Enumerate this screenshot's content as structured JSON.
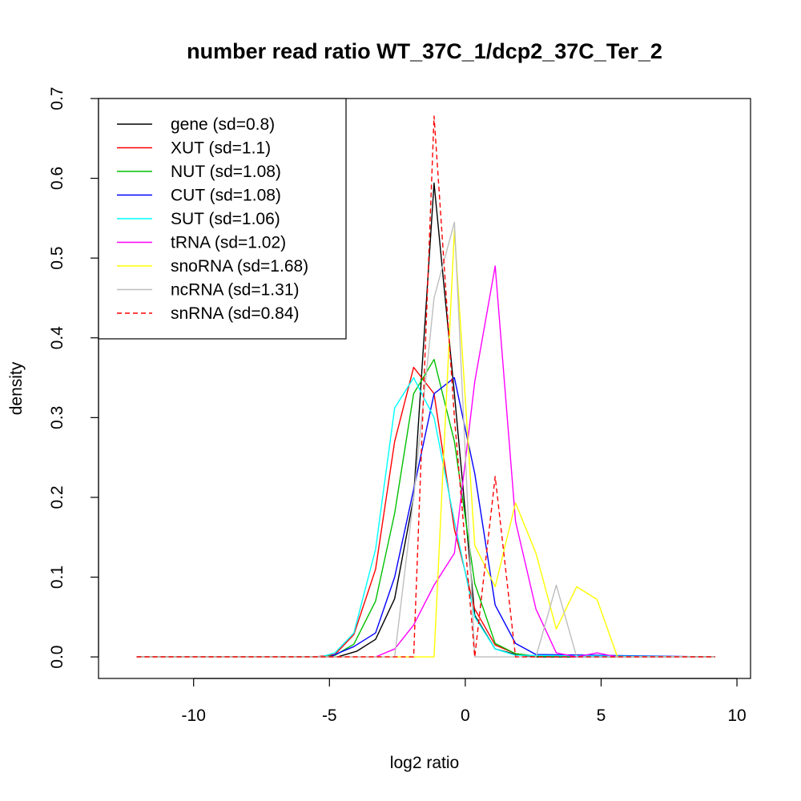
{
  "chart_data": {
    "type": "line",
    "title": "number read ratio WT_37C_1/dcp2_37C_Ter_2",
    "xlabel": "log2 ratio",
    "ylabel": "density",
    "xlim": [
      -13.5,
      10.5
    ],
    "ylim": [
      -0.027,
      0.7
    ],
    "x_ticks": [
      -10,
      -5,
      0,
      5,
      10
    ],
    "x_tick_labels": [
      "-10",
      "-5",
      "0",
      "5",
      "10"
    ],
    "y_ticks": [
      0.0,
      0.1,
      0.2,
      0.3,
      0.4,
      0.5,
      0.6,
      0.7
    ],
    "y_tick_labels": [
      "0.0",
      "0.1",
      "0.2",
      "0.3",
      "0.4",
      "0.5",
      "0.6",
      "0.7"
    ],
    "legend_position": "top-left",
    "series": [
      {
        "name": "gene",
        "label": "gene (sd=0.8)",
        "color": "#000000",
        "dash": false,
        "x": [
          -12.1,
          -5.0,
          -4.7,
          -4.0,
          -3.3,
          -2.6,
          -1.9,
          -1.15,
          -0.4,
          0.35,
          1.1,
          1.85,
          2.6,
          9.2
        ],
        "y": [
          0.0,
          0.0,
          0.0,
          0.007,
          0.022,
          0.073,
          0.2,
          0.594,
          0.33,
          0.052,
          0.01,
          0.003,
          0.0,
          0.0
        ]
      },
      {
        "name": "XUT",
        "label": "XUT (sd=1.1)",
        "color": "#ff0000",
        "dash": false,
        "x": [
          -12.1,
          -5.5,
          -4.8,
          -4.1,
          -3.3,
          -2.6,
          -1.9,
          -1.15,
          -0.4,
          0.35,
          1.1,
          1.85,
          2.6,
          9.2
        ],
        "y": [
          0.0,
          0.0,
          0.003,
          0.028,
          0.11,
          0.27,
          0.363,
          0.33,
          0.16,
          0.06,
          0.015,
          0.004,
          0.001,
          0.0
        ]
      },
      {
        "name": "NUT",
        "label": "NUT (sd=1.08)",
        "color": "#00c000",
        "dash": false,
        "x": [
          -12.1,
          -5.2,
          -4.8,
          -4.1,
          -3.3,
          -2.6,
          -1.9,
          -1.15,
          -0.4,
          0.35,
          1.1,
          1.85,
          2.6,
          9.2
        ],
        "y": [
          0.0,
          0.0,
          0.002,
          0.016,
          0.07,
          0.18,
          0.33,
          0.373,
          0.27,
          0.092,
          0.017,
          0.004,
          0.001,
          0.0
        ]
      },
      {
        "name": "CUT",
        "label": "CUT (sd=1.08)",
        "color": "#0000ff",
        "dash": false,
        "x": [
          -12.1,
          -5.0,
          -4.1,
          -3.3,
          -2.6,
          -1.9,
          -1.15,
          -0.4,
          0.35,
          1.1,
          1.85,
          2.6,
          9.2
        ],
        "y": [
          0.0,
          0.0,
          0.013,
          0.03,
          0.1,
          0.21,
          0.33,
          0.35,
          0.23,
          0.065,
          0.017,
          0.003,
          0.0
        ]
      },
      {
        "name": "SUT",
        "label": "SUT (sd=1.06)",
        "color": "#00ffff",
        "dash": false,
        "x": [
          -12.1,
          -5.3,
          -4.8,
          -4.1,
          -3.3,
          -2.6,
          -1.9,
          -1.15,
          -0.4,
          0.35,
          1.1,
          1.85,
          9.2
        ],
        "y": [
          0.0,
          0.0,
          0.005,
          0.03,
          0.135,
          0.312,
          0.35,
          0.3,
          0.17,
          0.05,
          0.01,
          0.002,
          0.0
        ]
      },
      {
        "name": "tRNA",
        "label": "tRNA (sd=1.02)",
        "color": "#ff00ff",
        "dash": false,
        "x": [
          -12.1,
          -3.3,
          -2.6,
          -1.9,
          -1.15,
          -0.4,
          0.35,
          1.1,
          1.85,
          2.6,
          3.35,
          4.1,
          4.85,
          5.6,
          9.2
        ],
        "y": [
          0.0,
          0.0,
          0.01,
          0.04,
          0.09,
          0.13,
          0.345,
          0.49,
          0.17,
          0.06,
          0.005,
          0.0,
          0.005,
          0.0,
          0.0
        ]
      },
      {
        "name": "snoRNA",
        "label": "snoRNA (sd=1.68)",
        "color": "#ffff00",
        "dash": false,
        "x": [
          -12.1,
          -1.15,
          -0.4,
          0.35,
          1.1,
          1.85,
          2.6,
          3.35,
          4.1,
          4.85,
          5.6,
          9.2
        ],
        "y": [
          0.0,
          0.0,
          0.535,
          0.14,
          0.088,
          0.193,
          0.13,
          0.035,
          0.088,
          0.072,
          0.0,
          0.0
        ]
      },
      {
        "name": "ncRNA",
        "label": "ncRNA (sd=1.31)",
        "color": "#bebebe",
        "dash": false,
        "x": [
          -12.1,
          -2.6,
          -1.9,
          -1.15,
          -0.4,
          0.35,
          1.1,
          1.85,
          2.6,
          3.35,
          4.1,
          9.2
        ],
        "y": [
          0.0,
          0.0,
          0.2,
          0.45,
          0.545,
          0.0,
          0.0,
          0.0,
          0.0,
          0.09,
          0.0,
          0.0
        ]
      },
      {
        "name": "snRNA",
        "label": "snRNA (sd=0.84)",
        "color": "#ff0000",
        "dash": true,
        "x": [
          -12.1,
          -1.9,
          -1.15,
          -0.4,
          0.35,
          1.1,
          1.85,
          9.2
        ],
        "y": [
          0.0,
          0.0,
          0.678,
          0.3,
          0.0,
          0.226,
          0.0,
          0.0
        ]
      }
    ]
  }
}
